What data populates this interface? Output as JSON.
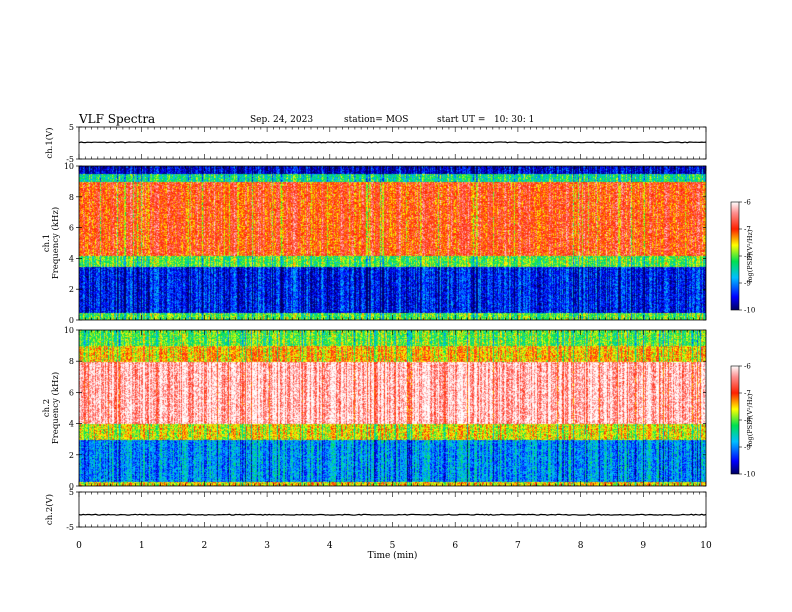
{
  "header": {
    "title": "VLF Spectra",
    "date": "Sep. 24, 2023",
    "station": "station= MOS",
    "start_ut": "start UT =   10: 30: 1"
  },
  "chart_data": [
    {
      "type": "line",
      "panel": "ch1-waveform",
      "ylabel": "ch.1(V)",
      "ylim": [
        -5,
        5
      ],
      "yticks": [
        "5",
        "-5"
      ],
      "x": [
        0,
        10
      ],
      "values": [
        0.2,
        0.2
      ]
    },
    {
      "type": "heatmap",
      "panel": "ch1-spectrogram",
      "ylabel": "ch.1 Frequency (kHz)",
      "ylim": [
        0,
        10
      ],
      "yticks": [
        "0",
        "2",
        "4",
        "6",
        "8",
        "10"
      ],
      "colorbar": {
        "label": "log(PSD)(V²/Hz)",
        "range": [
          -10,
          -6
        ],
        "ticks": [
          "-6",
          "-7",
          "-8",
          "-9",
          "-10"
        ]
      },
      "bands": [
        {
          "from": 0,
          "to": 0.5,
          "level": -8.0
        },
        {
          "from": 0.5,
          "to": 3.5,
          "level": -9.4
        },
        {
          "from": 3.5,
          "to": 4.2,
          "level": -8.0
        },
        {
          "from": 4.2,
          "to": 9.0,
          "level": -6.9
        },
        {
          "from": 9.0,
          "to": 9.5,
          "level": -8.3
        },
        {
          "from": 9.5,
          "to": 10,
          "level": -9.6
        }
      ]
    },
    {
      "type": "heatmap",
      "panel": "ch2-spectrogram",
      "ylabel": "ch.2 Frequency (kHz)",
      "ylim": [
        0,
        10
      ],
      "yticks": [
        "0",
        "2",
        "4",
        "6",
        "8",
        "10"
      ],
      "colorbar": {
        "label": "log(PSD)(V²/Hz)",
        "range": [
          -10,
          -6
        ],
        "ticks": [
          "-6",
          "-7",
          "-8",
          "-9",
          "-10"
        ]
      },
      "bands": [
        {
          "from": 0,
          "to": 0.3,
          "level": -7.5
        },
        {
          "from": 0.3,
          "to": 3.0,
          "level": -8.9
        },
        {
          "from": 3.0,
          "to": 4.0,
          "level": -7.6
        },
        {
          "from": 4.0,
          "to": 8.0,
          "level": -6.2
        },
        {
          "from": 8.0,
          "to": 9.0,
          "level": -7.4
        },
        {
          "from": 9.0,
          "to": 10,
          "level": -8.0
        }
      ]
    },
    {
      "type": "line",
      "panel": "ch2-waveform",
      "ylabel": "ch.2(V)",
      "ylim": [
        -5,
        5
      ],
      "yticks": [
        "5",
        "-5"
      ],
      "x": [
        0,
        10
      ],
      "values": [
        -1.5,
        -1.5
      ]
    }
  ],
  "xaxis": {
    "label": "Time (min)",
    "ticks": [
      "0",
      "1",
      "2",
      "3",
      "4",
      "5",
      "6",
      "7",
      "8",
      "9",
      "10"
    ],
    "xlim": [
      0,
      10
    ]
  }
}
